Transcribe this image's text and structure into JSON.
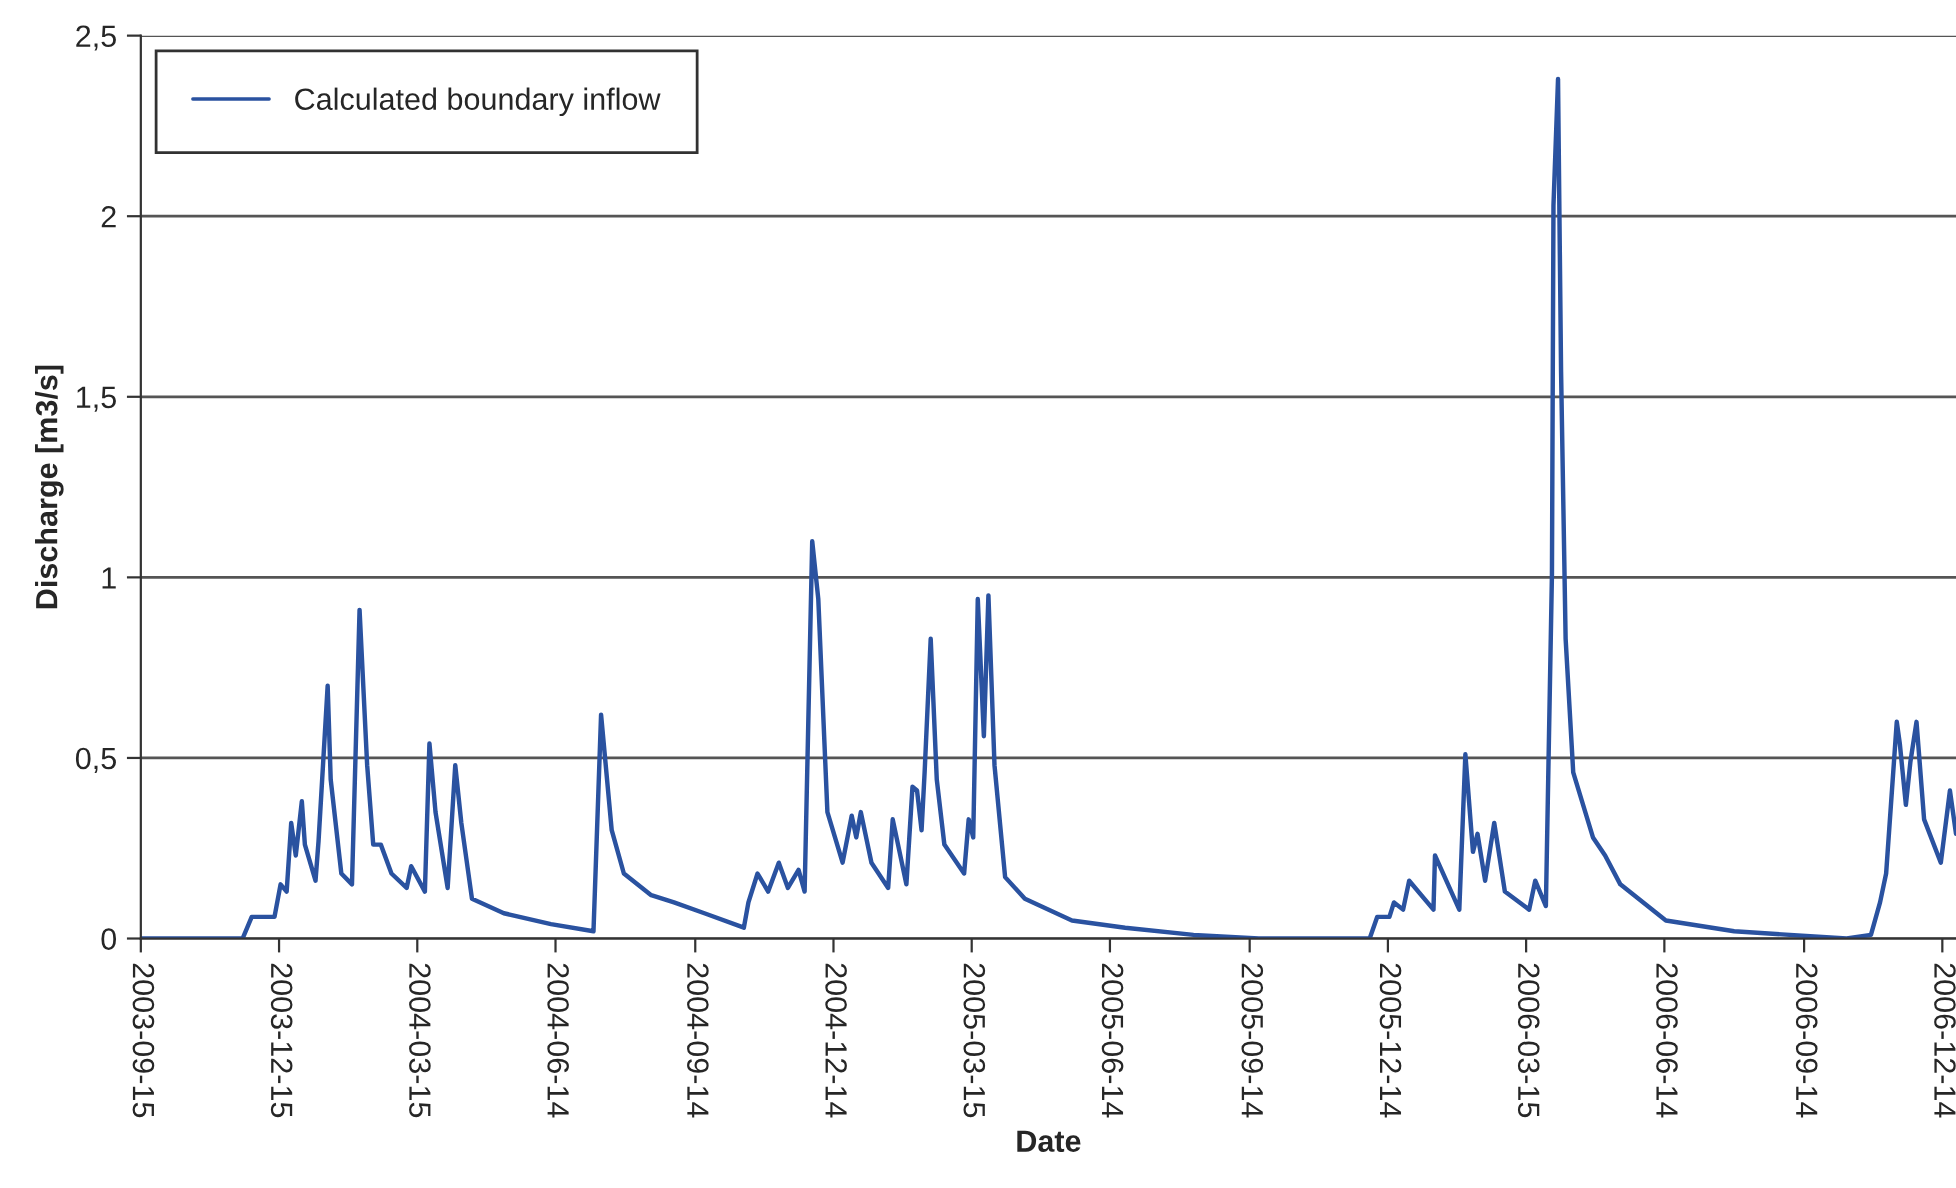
{
  "chart_data": {
    "type": "line",
    "xlabel": "Date",
    "ylabel": "Discharge [m3/s]",
    "x": [
      "2003-09-15",
      "2003-11-21",
      "2003-11-27",
      "2003-12-12",
      "2003-12-16",
      "2003-12-20",
      "2003-12-23",
      "2003-12-26",
      "2003-12-30",
      "2004-01-01",
      "2004-01-08",
      "2004-01-10",
      "2004-01-16",
      "2004-01-18",
      "2004-01-25",
      "2004-02-01",
      "2004-02-06",
      "2004-02-11",
      "2004-02-15",
      "2004-02-20",
      "2004-02-27",
      "2004-03-08",
      "2004-03-11",
      "2004-03-20",
      "2004-03-23",
      "2004-03-27",
      "2004-04-04",
      "2004-04-09",
      "2004-04-13",
      "2004-04-20",
      "2004-05-11",
      "2004-06-11",
      "2004-07-09",
      "2004-07-14",
      "2004-07-21",
      "2004-07-29",
      "2004-08-16",
      "2004-08-31",
      "2004-09-20",
      "2004-10-16",
      "2004-10-19",
      "2004-10-25",
      "2004-11-01",
      "2004-11-08",
      "2004-11-14",
      "2004-11-21",
      "2004-11-25",
      "2004-11-30",
      "2004-12-04",
      "2004-12-10",
      "2004-12-20",
      "2004-12-26",
      "2004-12-29",
      "2005-01-01",
      "2005-01-08",
      "2005-01-19",
      "2005-01-22",
      "2005-01-31",
      "2005-02-04",
      "2005-02-07",
      "2005-02-10",
      "2005-02-12",
      "2005-02-16",
      "2005-02-20",
      "2005-02-25",
      "2005-03-10",
      "2005-03-13",
      "2005-03-16",
      "2005-03-19",
      "2005-03-23",
      "2005-03-26",
      "2005-03-30",
      "2005-04-06",
      "2005-04-19",
      "2005-05-20",
      "2005-06-24",
      "2005-08-08",
      "2005-09-20",
      "2005-12-02",
      "2005-12-07",
      "2005-12-15",
      "2005-12-18",
      "2005-12-24",
      "2005-12-28",
      "2006-01-13",
      "2006-01-14",
      "2006-01-30",
      "2006-02-03",
      "2006-02-08",
      "2006-02-11",
      "2006-02-16",
      "2006-02-22",
      "2006-03-01",
      "2006-03-17",
      "2006-03-21",
      "2006-03-28",
      "2006-04-01",
      "2006-04-02",
      "2006-04-05",
      "2006-04-07",
      "2006-04-10",
      "2006-04-15",
      "2006-04-28",
      "2006-05-06",
      "2006-05-16",
      "2006-06-15",
      "2006-07-30",
      "2006-10-12",
      "2006-10-28",
      "2006-11-03",
      "2006-11-07",
      "2006-11-14",
      "2006-11-16",
      "2006-11-20",
      "2006-11-23",
      "2006-11-27",
      "2006-12-02",
      "2006-12-13",
      "2006-12-19",
      "2006-12-23"
    ],
    "series": [
      {
        "name": "Calculated boundary inflow",
        "color": "#2a52a0",
        "values": [
          0,
          0,
          0.06,
          0.06,
          0.15,
          0.13,
          0.32,
          0.23,
          0.38,
          0.26,
          0.16,
          0.27,
          0.7,
          0.44,
          0.18,
          0.15,
          0.91,
          0.48,
          0.26,
          0.26,
          0.18,
          0.14,
          0.2,
          0.13,
          0.54,
          0.35,
          0.14,
          0.48,
          0.32,
          0.11,
          0.07,
          0.04,
          0.02,
          0.62,
          0.3,
          0.18,
          0.12,
          0.1,
          0.07,
          0.03,
          0.1,
          0.18,
          0.13,
          0.21,
          0.14,
          0.19,
          0.13,
          1.1,
          0.94,
          0.35,
          0.21,
          0.34,
          0.28,
          0.35,
          0.21,
          0.14,
          0.33,
          0.15,
          0.42,
          0.41,
          0.3,
          0.46,
          0.83,
          0.44,
          0.26,
          0.18,
          0.33,
          0.28,
          0.94,
          0.56,
          0.95,
          0.48,
          0.17,
          0.11,
          0.05,
          0.03,
          0.01,
          0,
          0,
          0.06,
          0.06,
          0.1,
          0.08,
          0.16,
          0.08,
          0.23,
          0.08,
          0.51,
          0.24,
          0.29,
          0.16,
          0.32,
          0.13,
          0.08,
          0.16,
          0.09,
          1.01,
          2.03,
          2.38,
          1.57,
          0.83,
          0.46,
          0.28,
          0.23,
          0.15,
          0.05,
          0.02,
          0,
          0.01,
          0.1,
          0.18,
          0.6,
          0.54,
          0.37,
          0.49,
          0.6,
          0.33,
          0.21,
          0.41,
          0.29
        ]
      }
    ],
    "xlim": [
      "2003-09-15",
      "2006-12-23"
    ],
    "xticks": [
      "2003-09-15",
      "2003-12-15",
      "2004-03-15",
      "2004-06-14",
      "2004-09-14",
      "2004-12-14",
      "2005-03-15",
      "2005-06-14",
      "2005-09-14",
      "2005-12-14",
      "2006-03-15",
      "2006-06-14",
      "2006-09-14",
      "2006-12-14"
    ],
    "ylim": [
      0,
      2.5
    ],
    "yticks": [
      0,
      {
        "value": 0.5,
        "label": "0,5"
      },
      1,
      {
        "value": 1.5,
        "label": "1,5"
      },
      2,
      {
        "value": 2.5,
        "label": "2,5"
      }
    ],
    "grid": "y",
    "legend": "top left",
    "marker": "none",
    "line_style": "solid"
  }
}
